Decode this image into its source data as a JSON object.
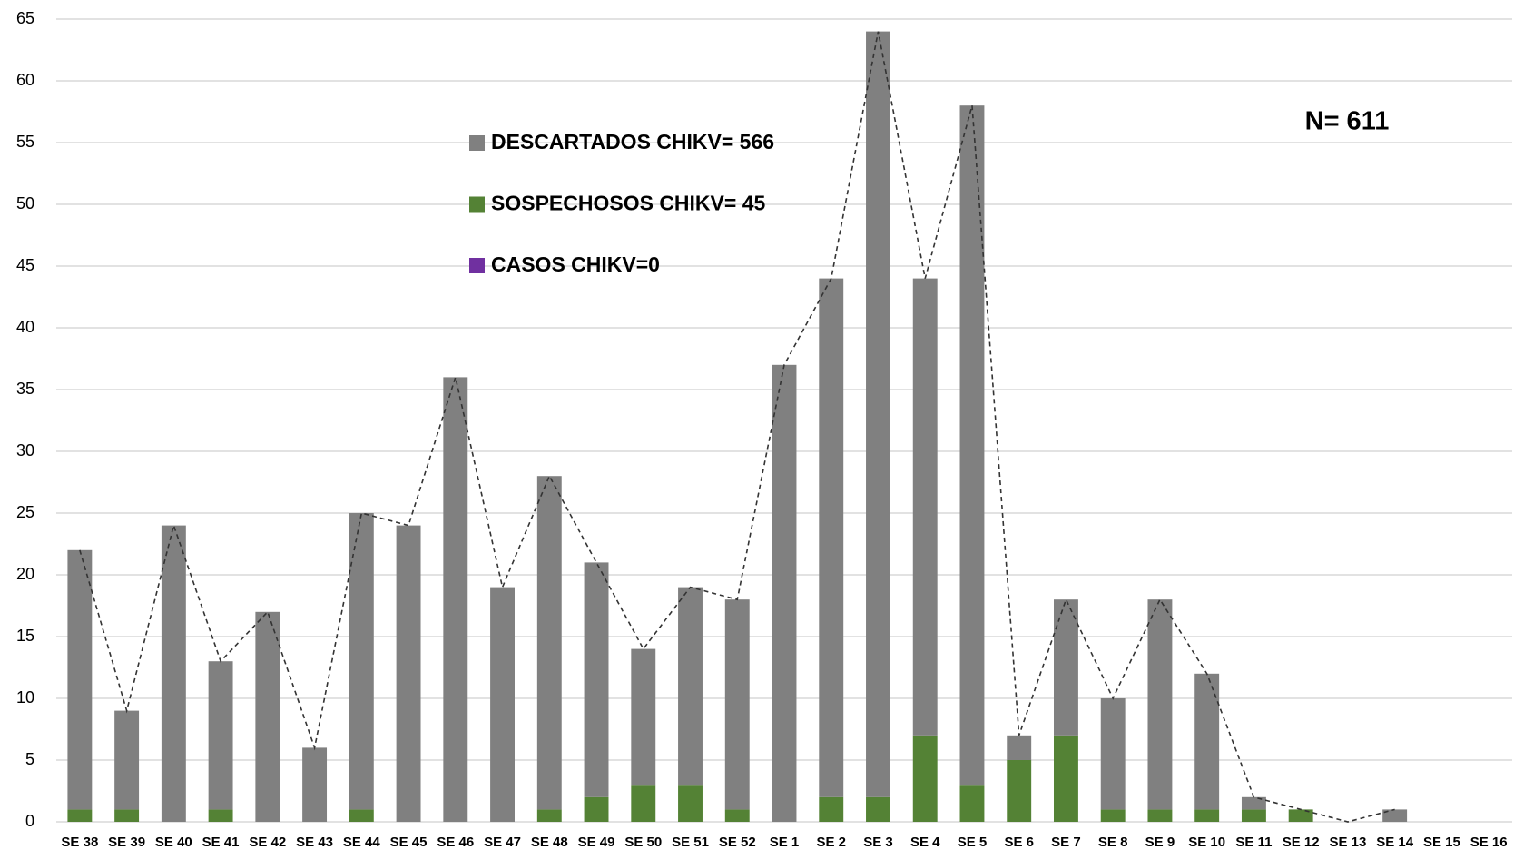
{
  "chart_data": {
    "type": "bar",
    "stacked": true,
    "annotation": "N= 611",
    "categories": [
      "SE 38",
      "SE 39",
      "SE 40",
      "SE 41",
      "SE 42",
      "SE 43",
      "SE 44",
      "SE 45",
      "SE 46",
      "SE 47",
      "SE 48",
      "SE 49",
      "SE 50",
      "SE 51",
      "SE 52",
      "SE 1",
      "SE 2",
      "SE 3",
      "SE 4",
      "SE 5",
      "SE 6",
      "SE 7",
      "SE 8",
      "SE 9",
      "SE 10",
      "SE 11",
      "SE 12",
      "SE 13",
      "SE 14",
      "SE 15",
      "SE 16"
    ],
    "series": [
      {
        "name": "SOSPECHOSOS CHIKV= 45",
        "color": "#548235",
        "values": [
          1,
          1,
          0,
          1,
          0,
          0,
          1,
          0,
          0,
          0,
          1,
          2,
          3,
          3,
          1,
          0,
          2,
          2,
          7,
          3,
          5,
          7,
          1,
          1,
          1,
          1,
          1,
          0,
          0,
          0,
          0
        ]
      },
      {
        "name": "DESCARTADOS CHIKV= 566",
        "color": "#808080",
        "values": [
          21,
          8,
          24,
          12,
          17,
          6,
          24,
          24,
          36,
          19,
          27,
          19,
          11,
          16,
          17,
          37,
          42,
          62,
          37,
          55,
          2,
          11,
          9,
          17,
          11,
          1,
          0,
          0,
          1,
          0,
          0
        ]
      },
      {
        "name": "CASOS CHIKV=0",
        "color": "#7030a0",
        "values": [
          0,
          0,
          0,
          0,
          0,
          0,
          0,
          0,
          0,
          0,
          0,
          0,
          0,
          0,
          0,
          0,
          0,
          0,
          0,
          0,
          0,
          0,
          0,
          0,
          0,
          0,
          0,
          0,
          0,
          0,
          0
        ]
      }
    ],
    "line": {
      "type": "line",
      "color": "#333333",
      "dashed": true,
      "values": [
        22,
        9,
        24,
        13,
        17,
        6,
        25,
        24,
        36,
        19,
        28,
        21,
        14,
        19,
        18,
        37,
        44,
        64,
        44,
        58,
        7,
        18,
        10,
        18,
        12,
        2,
        1,
        0,
        1,
        null,
        null
      ]
    },
    "ylim": [
      0,
      65
    ],
    "yticks": [
      0,
      5,
      10,
      15,
      20,
      25,
      30,
      35,
      40,
      45,
      50,
      55,
      60,
      65
    ],
    "grid": true
  }
}
